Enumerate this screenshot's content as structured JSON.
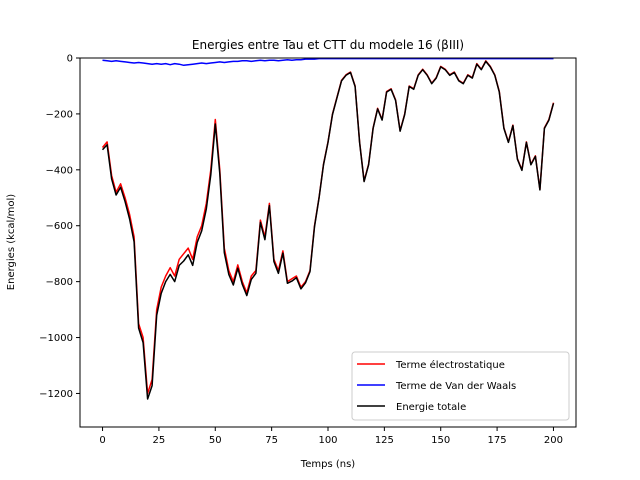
{
  "chart_data": {
    "type": "line",
    "title": "Energies entre Tau et CTT du modele 16 (βIII)",
    "xlabel": "Temps (ns)",
    "ylabel": "Energies (kcal/mol)",
    "xlim": [
      -10,
      210
    ],
    "ylim": [
      -1320,
      0
    ],
    "xticks": [
      0,
      25,
      50,
      75,
      100,
      125,
      150,
      175,
      200
    ],
    "yticks": [
      0,
      -200,
      -400,
      -600,
      -800,
      -1000,
      -1200
    ],
    "grid": false,
    "legend_position": "lower-right",
    "x": [
      0,
      2,
      4,
      6,
      8,
      10,
      12,
      14,
      16,
      18,
      20,
      22,
      24,
      26,
      28,
      30,
      32,
      34,
      36,
      38,
      40,
      42,
      44,
      46,
      48,
      50,
      52,
      54,
      56,
      58,
      60,
      62,
      64,
      66,
      68,
      70,
      72,
      74,
      76,
      78,
      80,
      82,
      84,
      86,
      88,
      90,
      92,
      94,
      96,
      98,
      100,
      102,
      104,
      106,
      108,
      110,
      112,
      114,
      116,
      118,
      120,
      122,
      124,
      126,
      128,
      130,
      132,
      134,
      136,
      138,
      140,
      142,
      144,
      146,
      148,
      150,
      152,
      154,
      156,
      158,
      160,
      162,
      164,
      166,
      168,
      170,
      172,
      174,
      176,
      178,
      180,
      182,
      184,
      186,
      188,
      190,
      192,
      194,
      196,
      198,
      200
    ],
    "series": [
      {
        "name": "Terme électrostatique",
        "color": "#ff0000",
        "values": [
          -320,
          -300,
          -420,
          -480,
          -450,
          -500,
          -560,
          -640,
          -950,
          -1000,
          -1200,
          -1150,
          -900,
          -820,
          -780,
          -750,
          -780,
          -720,
          -700,
          -680,
          -720,
          -640,
          -600,
          -520,
          -400,
          -220,
          -400,
          -680,
          -760,
          -800,
          -740,
          -800,
          -840,
          -780,
          -760,
          -580,
          -640,
          -520,
          -720,
          -760,
          -690,
          -800,
          -790,
          -780,
          -820,
          -800,
          -760,
          -600,
          -500,
          -380,
          -300,
          -200,
          -140,
          -80,
          -60,
          -50,
          -100,
          -300,
          -440,
          -380,
          -250,
          -180,
          -220,
          -120,
          -110,
          -150,
          -260,
          -200,
          -100,
          -110,
          -60,
          -40,
          -60,
          -90,
          -70,
          -30,
          -40,
          -60,
          -50,
          -80,
          -90,
          -60,
          -70,
          -20,
          -40,
          -10,
          -30,
          -60,
          -120,
          -250,
          -300,
          -240,
          -360,
          -400,
          -300,
          -380,
          -350,
          -470,
          -250,
          -220,
          -160
        ]
      },
      {
        "name": "Terme de Van der Waals",
        "color": "#0000ff",
        "values": [
          -8,
          -10,
          -12,
          -10,
          -12,
          -14,
          -16,
          -18,
          -16,
          -18,
          -20,
          -22,
          -20,
          -22,
          -20,
          -24,
          -20,
          -22,
          -26,
          -24,
          -22,
          -20,
          -18,
          -20,
          -18,
          -16,
          -14,
          -16,
          -14,
          -12,
          -12,
          -10,
          -10,
          -12,
          -10,
          -8,
          -10,
          -8,
          -8,
          -10,
          -8,
          -6,
          -8,
          -6,
          -6,
          -4,
          -4,
          -4,
          -2,
          -2,
          -2,
          -2,
          -2,
          -2,
          -2,
          -2,
          -2,
          -2,
          -2,
          -2,
          -2,
          -2,
          -2,
          -2,
          -2,
          -2,
          -2,
          -2,
          -2,
          -2,
          -2,
          -2,
          -2,
          -2,
          -2,
          -2,
          -2,
          -2,
          -2,
          -2,
          -2,
          -2,
          -2,
          -2,
          -2,
          -2,
          -2,
          -2,
          -2,
          -2,
          -2,
          -2,
          -2,
          -2,
          -2,
          -2,
          -2,
          -2,
          -2,
          -2,
          -2
        ]
      },
      {
        "name": "Energie totale",
        "color": "#000000",
        "values": [
          -328,
          -310,
          -432,
          -490,
          -462,
          -514,
          -576,
          -658,
          -966,
          -1018,
          -1220,
          -1172,
          -920,
          -842,
          -800,
          -774,
          -800,
          -742,
          -726,
          -704,
          -742,
          -660,
          -618,
          -540,
          -418,
          -236,
          -414,
          -696,
          -774,
          -812,
          -752,
          -810,
          -850,
          -792,
          -770,
          -588,
          -650,
          -528,
          -728,
          -770,
          -698,
          -806,
          -798,
          -786,
          -826,
          -804,
          -764,
          -604,
          -502,
          -382,
          -302,
          -202,
          -142,
          -82,
          -62,
          -52,
          -102,
          -302,
          -442,
          -382,
          -252,
          -182,
          -222,
          -122,
          -112,
          -152,
          -262,
          -202,
          -102,
          -112,
          -62,
          -42,
          -62,
          -92,
          -72,
          -32,
          -42,
          -62,
          -52,
          -82,
          -92,
          -62,
          -72,
          -22,
          -42,
          -12,
          -32,
          -62,
          -122,
          -252,
          -302,
          -242,
          -362,
          -402,
          -302,
          -382,
          -352,
          -472,
          -252,
          -222,
          -162
        ]
      }
    ]
  }
}
